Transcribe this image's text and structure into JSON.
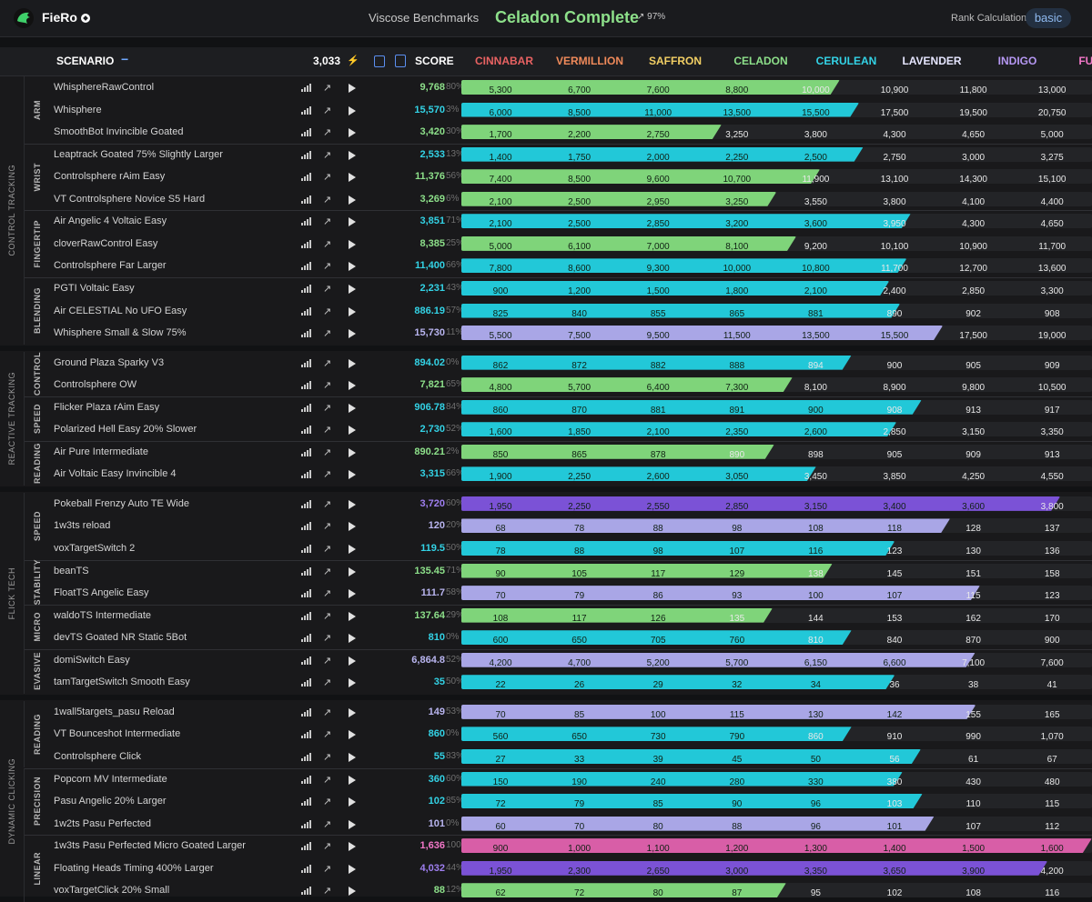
{
  "app": {
    "name": "FieRo",
    "benchmark": "Viscose Benchmarks",
    "rank": "Celadon Complete",
    "progress": "97%",
    "rank_calc_label": "Rank Calculation",
    "rank_calc_value": "basic"
  },
  "header": {
    "scenario": "SCENARIO",
    "minus": "−",
    "total": "3,033",
    "bolt": "⚡",
    "score": "SCORE",
    "ranks": [
      {
        "name": "CINNABAR",
        "color": "#e86262"
      },
      {
        "name": "VERMILLION",
        "color": "#f08a5a"
      },
      {
        "name": "SAFFRON",
        "color": "#f2cf64"
      },
      {
        "name": "CELADON",
        "color": "#8de08a"
      },
      {
        "name": "CERULEAN",
        "color": "#33d3e6"
      },
      {
        "name": "LAVENDER",
        "color": "#e6e6ff"
      },
      {
        "name": "INDIGO",
        "color": "#b597f2"
      },
      {
        "name": "FUCHSIA",
        "color": "#f277c8"
      }
    ]
  },
  "fill_colors": {
    "green": "#7fd47a",
    "cyan": "#22c8d8",
    "lav": "#a9a6e6",
    "purple": "#7b52d6",
    "pink": "#d85ea7"
  },
  "score_colors": {
    "green": "#8de08a",
    "cyan": "#33d3e6",
    "lav": "#b9b5f0",
    "purple": "#9f7ff0",
    "pink": "#f277c8"
  },
  "groups": [
    {
      "name": "CONTROL TRACKING",
      "subs": [
        {
          "name": "ARM",
          "rows": [
            {
              "n": "WhisphereRawControl",
              "s": "9,768",
              "p": "80%",
              "c": "green",
              "f": 4.8,
              "v": [
                "5,300",
                "6,700",
                "7,600",
                "8,800",
                "10,000",
                "10,900",
                "11,800",
                "13,000"
              ]
            },
            {
              "n": "Whisphere",
              "s": "15,570",
              "p": "3%",
              "c": "cyan",
              "f": 5.05,
              "v": [
                "6,000",
                "8,500",
                "11,000",
                "13,500",
                "15,500",
                "17,500",
                "19,500",
                "20,750"
              ]
            },
            {
              "n": "SmoothBot Invincible Goated",
              "s": "3,420",
              "p": "30%",
              "c": "green",
              "f": 3.3,
              "v": [
                "1,700",
                "2,200",
                "2,750",
                "3,250",
                "3,800",
                "4,300",
                "4,650",
                "5,000"
              ]
            }
          ]
        },
        {
          "name": "WRIST",
          "rows": [
            {
              "n": "Leaptrack Goated 75% Slightly Larger",
              "s": "2,533",
              "p": "13%",
              "c": "cyan",
              "f": 5.1,
              "v": [
                "1,400",
                "1,750",
                "2,000",
                "2,250",
                "2,500",
                "2,750",
                "3,000",
                "3,275"
              ]
            },
            {
              "n": "Controlsphere rAim Easy",
              "s": "11,376",
              "p": "56%",
              "c": "green",
              "f": 4.55,
              "v": [
                "7,400",
                "8,500",
                "9,600",
                "10,700",
                "11,900",
                "13,100",
                "14,300",
                "15,100"
              ]
            },
            {
              "n": "VT Controlsphere Novice S5 Hard",
              "s": "3,269",
              "p": "6%",
              "c": "green",
              "f": 4.0,
              "v": [
                "2,100",
                "2,500",
                "2,950",
                "3,250",
                "3,550",
                "3,800",
                "4,100",
                "4,400"
              ]
            }
          ]
        },
        {
          "name": "FINGERTIP",
          "rows": [
            {
              "n": "Air Angelic 4 Voltaic Easy",
              "s": "3,851",
              "p": "71%",
              "c": "cyan",
              "f": 5.7,
              "v": [
                "2,100",
                "2,500",
                "2,850",
                "3,200",
                "3,600",
                "3,950",
                "4,300",
                "4,650"
              ]
            },
            {
              "n": "cloverRawControl Easy",
              "s": "8,385",
              "p": "25%",
              "c": "green",
              "f": 4.25,
              "v": [
                "5,000",
                "6,100",
                "7,000",
                "8,100",
                "9,200",
                "10,100",
                "10,900",
                "11,700"
              ]
            },
            {
              "n": "Controlsphere Far Larger",
              "s": "11,400",
              "p": "66%",
              "c": "cyan",
              "f": 5.65,
              "v": [
                "7,800",
                "8,600",
                "9,300",
                "10,000",
                "10,800",
                "11,700",
                "12,700",
                "13,600"
              ]
            }
          ]
        },
        {
          "name": "BLENDING",
          "rows": [
            {
              "n": "PGTI Voltaic Easy",
              "s": "2,231",
              "p": "43%",
              "c": "cyan",
              "f": 5.43,
              "v": [
                "900",
                "1,200",
                "1,500",
                "1,800",
                "2,100",
                "2,400",
                "2,850",
                "3,300"
              ]
            },
            {
              "n": "Air CELESTIAL No UFO Easy",
              "s": "886.19",
              "p": "57%",
              "c": "cyan",
              "f": 5.57,
              "v": [
                "825",
                "840",
                "855",
                "865",
                "881",
                "890",
                "902",
                "908"
              ]
            },
            {
              "n": "Whisphere Small & Slow 75%",
              "s": "15,730",
              "p": "11%",
              "c": "lav",
              "f": 6.11,
              "v": [
                "5,500",
                "7,500",
                "9,500",
                "11,500",
                "13,500",
                "15,500",
                "17,500",
                "19,000"
              ]
            }
          ]
        }
      ]
    },
    {
      "name": "REACTIVE TRACKING",
      "subs": [
        {
          "name": "CONTROL",
          "rows": [
            {
              "n": "Ground Plaza Sparky V3",
              "s": "894.02",
              "p": "0%",
              "c": "cyan",
              "f": 4.95,
              "v": [
                "862",
                "872",
                "882",
                "888",
                "894",
                "900",
                "905",
                "909"
              ]
            },
            {
              "n": "Controlsphere OW",
              "s": "7,821",
              "p": "65%",
              "c": "green",
              "f": 4.2,
              "v": [
                "4,800",
                "5,700",
                "6,400",
                "7,300",
                "8,100",
                "8,900",
                "9,800",
                "10,500"
              ]
            }
          ]
        },
        {
          "name": "SPEED",
          "rows": [
            {
              "n": "Flicker Plaza rAim Easy",
              "s": "906.78",
              "p": "84%",
              "c": "cyan",
              "f": 5.84,
              "v": [
                "860",
                "870",
                "881",
                "891",
                "900",
                "908",
                "913",
                "917"
              ]
            },
            {
              "n": "Polarized Hell Easy 20% Slower",
              "s": "2,730",
              "p": "52%",
              "c": "cyan",
              "f": 5.52,
              "v": [
                "1,600",
                "1,850",
                "2,100",
                "2,350",
                "2,600",
                "2,850",
                "3,150",
                "3,350"
              ]
            }
          ]
        },
        {
          "name": "READING",
          "rows": [
            {
              "n": "Air Pure Intermediate",
              "s": "890.21",
              "p": "2%",
              "c": "green",
              "f": 3.97,
              "v": [
                "850",
                "865",
                "878",
                "890",
                "898",
                "905",
                "909",
                "913"
              ]
            },
            {
              "n": "Air Voltaic Easy Invincible 4",
              "s": "3,315",
              "p": "66%",
              "c": "cyan",
              "f": 4.5,
              "v": [
                "1,900",
                "2,250",
                "2,600",
                "3,050",
                "3,450",
                "3,850",
                "4,250",
                "4,550"
              ]
            }
          ]
        }
      ]
    },
    {
      "name": "FLICK TECH",
      "subs": [
        {
          "name": "SPEED",
          "rows": [
            {
              "n": "Pokeball Frenzy Auto TE Wide",
              "s": "3,720",
              "p": "60%",
              "c": "purple",
              "f": 7.6,
              "v": [
                "1,950",
                "2,250",
                "2,550",
                "2,850",
                "3,150",
                "3,400",
                "3,600",
                "3,800"
              ]
            },
            {
              "n": "1w3ts reload",
              "s": "120",
              "p": "20%",
              "c": "lav",
              "f": 6.2,
              "v": [
                "68",
                "78",
                "88",
                "98",
                "108",
                "118",
                "128",
                "137"
              ]
            },
            {
              "n": "voxTargetSwitch 2",
              "s": "119.5",
              "p": "50%",
              "c": "cyan",
              "f": 5.5,
              "v": [
                "78",
                "88",
                "98",
                "107",
                "116",
                "123",
                "130",
                "136"
              ]
            }
          ]
        },
        {
          "name": "STABILITY",
          "rows": [
            {
              "n": "beanTS",
              "s": "135.45",
              "p": "71%",
              "c": "green",
              "f": 4.71,
              "v": [
                "90",
                "105",
                "117",
                "129",
                "138",
                "145",
                "151",
                "158"
              ]
            },
            {
              "n": "FloatTS Angelic Easy",
              "s": "111.7",
              "p": "58%",
              "c": "lav",
              "f": 6.58,
              "v": [
                "70",
                "79",
                "86",
                "93",
                "100",
                "107",
                "115",
                "123"
              ]
            }
          ]
        },
        {
          "name": "MICRO",
          "rows": [
            {
              "n": "waldoTS Intermediate",
              "s": "137.64",
              "p": "29%",
              "c": "green",
              "f": 3.95,
              "v": [
                "108",
                "117",
                "126",
                "135",
                "144",
                "153",
                "162",
                "170"
              ]
            },
            {
              "n": "devTS Goated NR Static 5Bot",
              "s": "810",
              "p": "0%",
              "c": "cyan",
              "f": 4.95,
              "v": [
                "600",
                "650",
                "705",
                "760",
                "810",
                "840",
                "870",
                "900"
              ]
            }
          ]
        },
        {
          "name": "EVASIVE",
          "rows": [
            {
              "n": "domiSwitch Easy",
              "s": "6,864.8",
              "p": "52%",
              "c": "lav",
              "f": 6.52,
              "v": [
                "4,200",
                "4,700",
                "5,200",
                "5,700",
                "6,150",
                "6,600",
                "7,100",
                "7,600"
              ]
            },
            {
              "n": "tamTargetSwitch Smooth Easy",
              "s": "35",
              "p": "50%",
              "c": "cyan",
              "f": 5.5,
              "v": [
                "22",
                "26",
                "29",
                "32",
                "34",
                "36",
                "38",
                "41"
              ]
            }
          ]
        }
      ]
    },
    {
      "name": "DYNAMIC CLICKING",
      "subs": [
        {
          "name": "READING",
          "rows": [
            {
              "n": "1wall5targets_pasu Reload",
              "s": "149",
              "p": "53%",
              "c": "lav",
              "f": 6.53,
              "v": [
                "70",
                "85",
                "100",
                "115",
                "130",
                "142",
                "155",
                "165"
              ]
            },
            {
              "n": "VT Bounceshot Intermediate",
              "s": "860",
              "p": "0%",
              "c": "cyan",
              "f": 4.95,
              "v": [
                "560",
                "650",
                "730",
                "790",
                "860",
                "910",
                "990",
                "1,070"
              ]
            },
            {
              "n": "Controlsphere Click",
              "s": "55",
              "p": "83%",
              "c": "cyan",
              "f": 5.83,
              "v": [
                "27",
                "33",
                "39",
                "45",
                "50",
                "56",
                "61",
                "67"
              ]
            }
          ]
        },
        {
          "name": "PRECISION",
          "rows": [
            {
              "n": "Popcorn MV Intermediate",
              "s": "360",
              "p": "60%",
              "c": "cyan",
              "f": 5.6,
              "v": [
                "150",
                "190",
                "240",
                "280",
                "330",
                "380",
                "430",
                "480"
              ]
            },
            {
              "n": "Pasu Angelic 20% Larger",
              "s": "102",
              "p": "85%",
              "c": "cyan",
              "f": 5.85,
              "v": [
                "72",
                "79",
                "85",
                "90",
                "96",
                "103",
                "110",
                "115"
              ]
            },
            {
              "n": "1w2ts Pasu Perfected",
              "s": "101",
              "p": "0%",
              "c": "lav",
              "f": 6.0,
              "v": [
                "60",
                "70",
                "80",
                "88",
                "96",
                "101",
                "107",
                "112"
              ]
            }
          ]
        },
        {
          "name": "LINEAR",
          "rows": [
            {
              "n": "1w3ts Pasu Perfected Micro Goated Larger",
              "s": "1,636",
              "p": "100%",
              "c": "pink",
              "f": 8.0,
              "v": [
                "900",
                "1,000",
                "1,100",
                "1,200",
                "1,300",
                "1,400",
                "1,500",
                "1,600"
              ]
            },
            {
              "n": "Floating Heads Timing 400% Larger",
              "s": "4,032",
              "p": "44%",
              "c": "purple",
              "f": 7.44,
              "v": [
                "1,950",
                "2,300",
                "2,650",
                "3,000",
                "3,350",
                "3,650",
                "3,900",
                "4,200"
              ]
            },
            {
              "n": "voxTargetClick 20% Small",
              "s": "88",
              "p": "12%",
              "c": "green",
              "f": 4.12,
              "v": [
                "62",
                "72",
                "80",
                "87",
                "95",
                "102",
                "108",
                "116"
              ]
            }
          ]
        }
      ]
    }
  ]
}
